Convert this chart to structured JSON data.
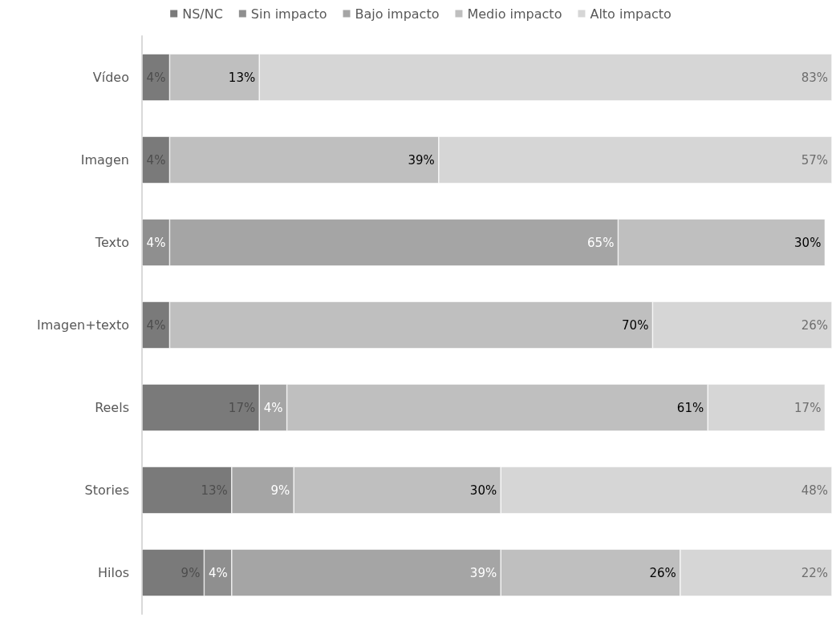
{
  "chart_data": {
    "type": "bar",
    "orientation": "horizontal",
    "stacked": true,
    "legend": "top",
    "categories": [
      "Vídeo",
      "Imagen",
      "Texto",
      "Imagen+texto",
      "Reels",
      "Stories",
      "Hilos"
    ],
    "series": [
      {
        "name": "NS/NC",
        "color": "#7a7a7a",
        "values": [
          4,
          4,
          null,
          4,
          17,
          13,
          9
        ],
        "value_labels": [
          "4%",
          "4%",
          null,
          "4%",
          "17%",
          "13%",
          "9%"
        ]
      },
      {
        "name": "Sin impacto",
        "color": "#8f8f8f",
        "values": [
          null,
          null,
          4,
          null,
          null,
          null,
          4
        ],
        "value_labels": [
          null,
          null,
          "4%",
          null,
          null,
          null,
          "4%"
        ]
      },
      {
        "name": "Bajo impacto",
        "color": "#a5a5a5",
        "values": [
          null,
          null,
          65,
          null,
          4,
          9,
          39
        ],
        "value_labels": [
          null,
          null,
          "65%",
          null,
          "4%",
          "9%",
          "39%"
        ]
      },
      {
        "name": "Medio impacto",
        "color": "#bfbfbf",
        "values": [
          13,
          39,
          30,
          70,
          61,
          30,
          26
        ],
        "value_labels": [
          "13%",
          "39%",
          "30%",
          "70%",
          "61%",
          "30%",
          "26%"
        ]
      },
      {
        "name": "Alto impacto",
        "color": "#d6d6d6",
        "values": [
          83,
          57,
          null,
          26,
          17,
          48,
          22
        ],
        "value_labels": [
          "83%",
          "57%",
          null,
          "26%",
          "17%",
          "48%",
          "22%"
        ]
      }
    ]
  }
}
